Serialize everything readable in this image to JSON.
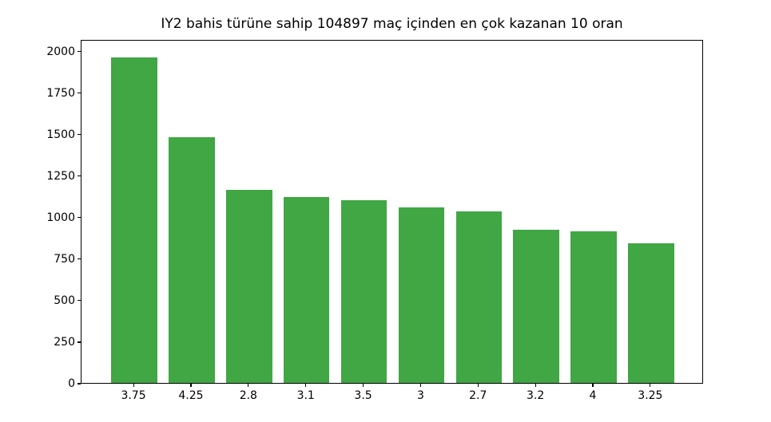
{
  "chart_data": {
    "type": "bar",
    "title": "IY2 bahis türüne sahip 104897 maç içinden en çok kazanan 10 oran",
    "categories": [
      "3.75",
      "4.25",
      "2.8",
      "3.1",
      "3.5",
      "3",
      "2.7",
      "3.2",
      "4",
      "3.25"
    ],
    "values": [
      1971,
      1484,
      1167,
      1122,
      1105,
      1063,
      1038,
      926,
      916,
      846
    ],
    "xlabel": "",
    "ylabel": "",
    "ylim": [
      0,
      2070
    ],
    "yticks": [
      0,
      250,
      500,
      750,
      1000,
      1250,
      1500,
      1750,
      2000
    ],
    "bar_color": "#41a644",
    "axis_color": "#000000",
    "grid": false,
    "legend_position": "none"
  }
}
